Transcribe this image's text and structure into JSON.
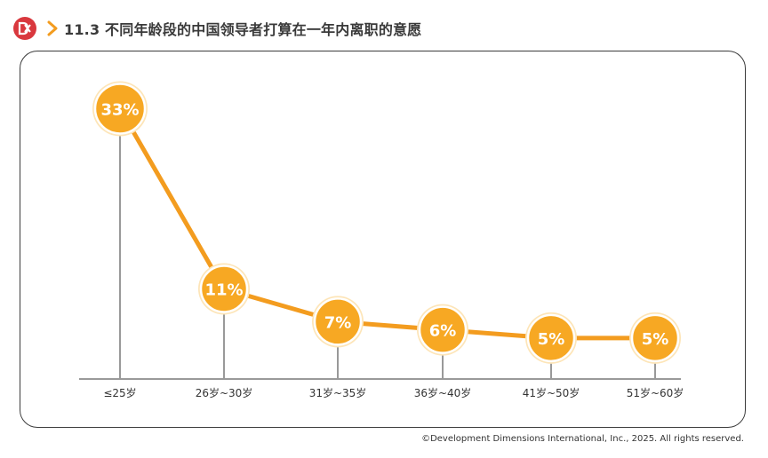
{
  "header": {
    "title": "11.3 不同年龄段的中国领导者打算在一年内离职的意愿",
    "logo_icon": "ddi-logo-icon",
    "chevron_icon": "chevron-right-icon",
    "accent_color": "#f39c1f",
    "logo_color": "#d9383e"
  },
  "chart_data": {
    "type": "line",
    "title": "",
    "xlabel": "",
    "ylabel": "",
    "categories": [
      "≤25岁",
      "26岁~30岁",
      "31岁~35岁",
      "36岁~40岁",
      "41岁~50岁",
      "51岁~60岁"
    ],
    "values": [
      33,
      11,
      7,
      6,
      5,
      5
    ],
    "data_labels": [
      "33%",
      "11%",
      "7%",
      "6%",
      "5%",
      "5%"
    ],
    "ylim": [
      0,
      35
    ],
    "grid": false,
    "legend": "none",
    "line_color": "#f39c1f",
    "marker_fill": "#f7a823",
    "stem_color": "#999999"
  },
  "footer": {
    "copyright": "©Development Dimensions International, Inc., 2025. All rights reserved."
  }
}
